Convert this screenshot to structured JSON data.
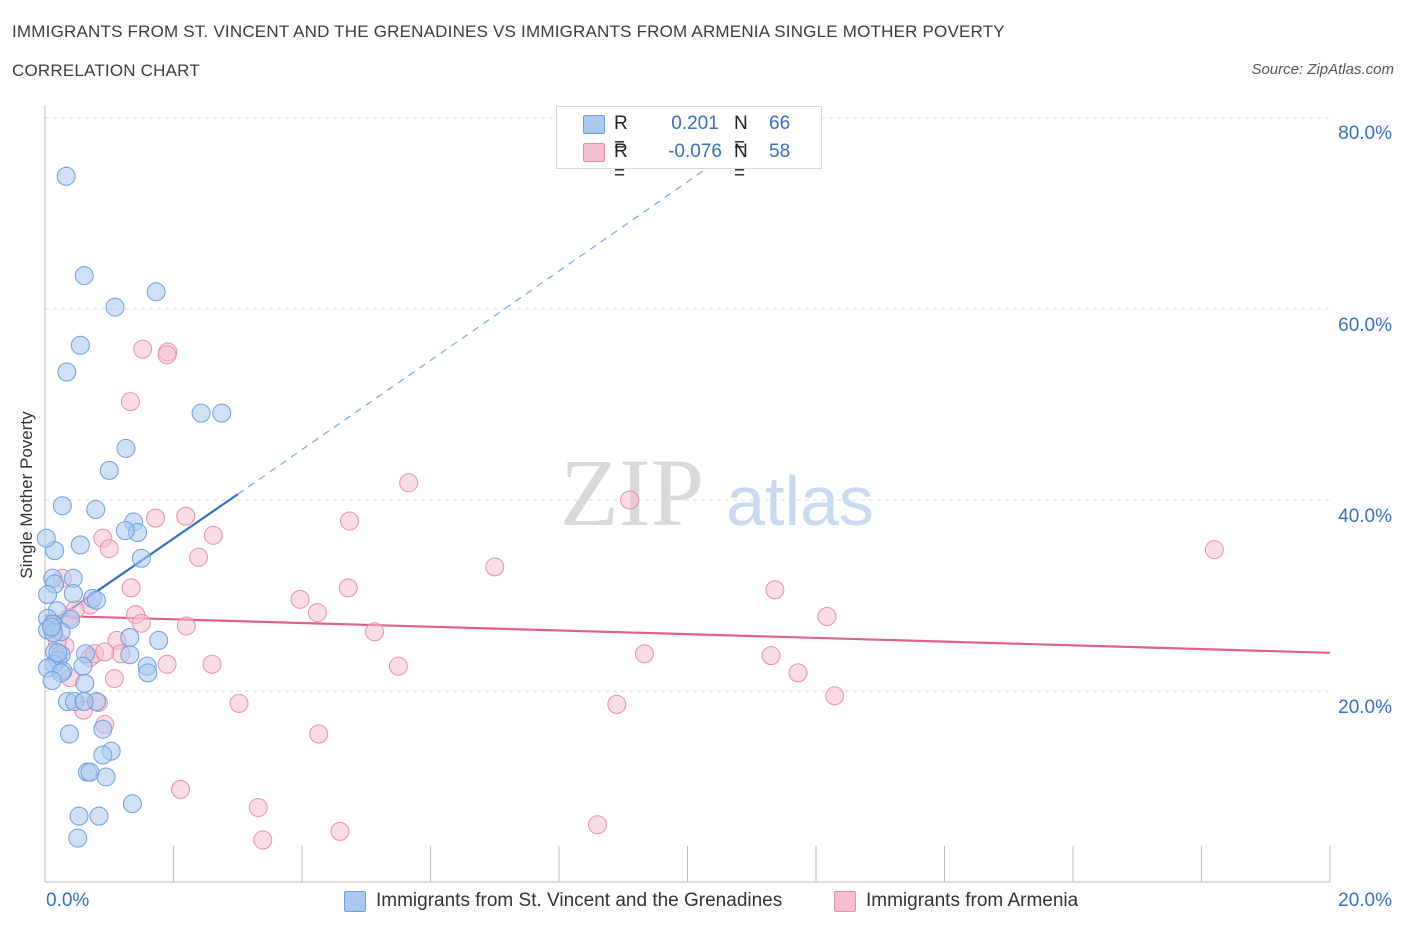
{
  "title_line1": "IMMIGRANTS FROM ST. VINCENT AND THE GRENADINES VS IMMIGRANTS FROM ARMENIA SINGLE MOTHER POVERTY",
  "title_line2": "CORRELATION CHART",
  "source": "Source: ZipAtlas.com",
  "watermark": {
    "zip": "ZIP",
    "atlas": "atlas"
  },
  "colors": {
    "blue_fill": "#aac8f0",
    "blue_stroke": "#6b9fdc",
    "blue_line": "#2f6fce",
    "pink_fill": "#f5bfd0",
    "pink_stroke": "#e98fac",
    "pink_line": "#e0608e",
    "tick_text": "#3a6fc4",
    "grid": "#dcdcdc"
  },
  "legend": {
    "r_label": "R =",
    "n_label": "N =",
    "rows": [
      {
        "r": "0.201",
        "n": "66"
      },
      {
        "r": "-0.076",
        "n": "58"
      }
    ]
  },
  "chart_data": {
    "type": "scatter",
    "xlabel": "",
    "ylabel": "Single Mother Poverty",
    "xlim": [
      0,
      20
    ],
    "ylim": [
      0,
      80
    ],
    "x_tick_labels": [
      "0.0%",
      "20.0%"
    ],
    "y_tick_labels": [
      "80.0%",
      "60.0%",
      "40.0%",
      "20.0%"
    ],
    "y_ticks": [
      80,
      60,
      40,
      20
    ],
    "grid": true,
    "legend_position": "top-center",
    "series": [
      {
        "name": "Immigrants from St. Vincent and the Grenadines",
        "r": 0.201,
        "n": 66,
        "points": [
          [
            0.33,
            73.9
          ],
          [
            0.61,
            63.5
          ],
          [
            1.09,
            60.2
          ],
          [
            1.73,
            61.8
          ],
          [
            0.55,
            56.2
          ],
          [
            0.34,
            53.4
          ],
          [
            2.43,
            49.1
          ],
          [
            2.75,
            49.1
          ],
          [
            1.26,
            45.4
          ],
          [
            1.0,
            43.1
          ],
          [
            0.27,
            39.4
          ],
          [
            0.79,
            39.0
          ],
          [
            1.38,
            37.7
          ],
          [
            1.44,
            36.6
          ],
          [
            1.25,
            36.8
          ],
          [
            0.55,
            35.3
          ],
          [
            0.15,
            34.7
          ],
          [
            0.02,
            36.0
          ],
          [
            1.5,
            33.9
          ],
          [
            0.12,
            31.8
          ],
          [
            0.44,
            31.8
          ],
          [
            0.15,
            31.2
          ],
          [
            0.44,
            30.2
          ],
          [
            0.04,
            30.1
          ],
          [
            0.74,
            29.7
          ],
          [
            0.8,
            29.5
          ],
          [
            0.19,
            28.4
          ],
          [
            0.04,
            27.6
          ],
          [
            0.4,
            27.5
          ],
          [
            0.12,
            27.0
          ],
          [
            0.04,
            26.4
          ],
          [
            0.25,
            26.2
          ],
          [
            0.13,
            26.1
          ],
          [
            1.32,
            25.6
          ],
          [
            1.77,
            25.3
          ],
          [
            0.15,
            24.1
          ],
          [
            0.25,
            23.8
          ],
          [
            0.63,
            23.9
          ],
          [
            1.32,
            23.8
          ],
          [
            0.2,
            23.2
          ],
          [
            0.14,
            22.8
          ],
          [
            0.59,
            22.6
          ],
          [
            1.59,
            22.6
          ],
          [
            0.04,
            22.4
          ],
          [
            0.28,
            22.1
          ],
          [
            0.25,
            21.9
          ],
          [
            1.6,
            21.9
          ],
          [
            0.11,
            21.1
          ],
          [
            0.62,
            20.8
          ],
          [
            0.35,
            18.9
          ],
          [
            0.46,
            18.9
          ],
          [
            0.8,
            18.9
          ],
          [
            0.61,
            18.9
          ],
          [
            0.38,
            15.5
          ],
          [
            0.9,
            16.0
          ],
          [
            1.03,
            13.7
          ],
          [
            0.9,
            13.3
          ],
          [
            0.66,
            11.5
          ],
          [
            0.7,
            11.5
          ],
          [
            0.95,
            11.0
          ],
          [
            1.36,
            8.2
          ],
          [
            0.53,
            6.9
          ],
          [
            0.84,
            6.9
          ],
          [
            0.51,
            4.6
          ],
          [
            0.1,
            26.7
          ],
          [
            0.2,
            24.0
          ]
        ]
      },
      {
        "name": "Immigrants from Armenia",
        "r": -0.076,
        "n": 58,
        "points": [
          [
            1.52,
            55.8
          ],
          [
            1.91,
            55.5
          ],
          [
            1.9,
            55.2
          ],
          [
            1.33,
            50.3
          ],
          [
            5.66,
            41.8
          ],
          [
            9.1,
            40.0
          ],
          [
            2.19,
            38.3
          ],
          [
            1.72,
            38.1
          ],
          [
            4.74,
            37.8
          ],
          [
            2.62,
            36.3
          ],
          [
            0.9,
            36.0
          ],
          [
            1.0,
            34.9
          ],
          [
            2.39,
            34.0
          ],
          [
            7.0,
            33.0
          ],
          [
            18.2,
            34.8
          ],
          [
            0.27,
            31.8
          ],
          [
            1.34,
            30.8
          ],
          [
            4.72,
            30.8
          ],
          [
            11.36,
            30.6
          ],
          [
            3.97,
            29.6
          ],
          [
            0.7,
            29.0
          ],
          [
            4.24,
            28.2
          ],
          [
            0.38,
            27.7
          ],
          [
            1.41,
            28.0
          ],
          [
            12.17,
            27.8
          ],
          [
            0.47,
            28.5
          ],
          [
            1.5,
            27.1
          ],
          [
            2.2,
            26.8
          ],
          [
            5.13,
            26.2
          ],
          [
            0.12,
            26.6
          ],
          [
            1.12,
            25.3
          ],
          [
            0.7,
            23.5
          ],
          [
            0.77,
            23.9
          ],
          [
            1.18,
            23.9
          ],
          [
            9.33,
            23.9
          ],
          [
            11.3,
            23.7
          ],
          [
            1.9,
            22.8
          ],
          [
            2.6,
            22.8
          ],
          [
            5.5,
            22.6
          ],
          [
            11.72,
            21.9
          ],
          [
            0.39,
            21.4
          ],
          [
            1.08,
            21.3
          ],
          [
            12.29,
            19.5
          ],
          [
            0.6,
            18.9
          ],
          [
            3.02,
            18.7
          ],
          [
            8.9,
            18.6
          ],
          [
            0.83,
            18.8
          ],
          [
            0.6,
            18.0
          ],
          [
            0.93,
            16.5
          ],
          [
            4.26,
            15.5
          ],
          [
            2.11,
            9.7
          ],
          [
            3.32,
            7.8
          ],
          [
            8.6,
            6.0
          ],
          [
            4.59,
            5.3
          ],
          [
            3.39,
            4.4
          ],
          [
            0.31,
            24.7
          ],
          [
            0.19,
            25.2
          ],
          [
            0.93,
            24.1
          ]
        ]
      }
    ],
    "trend_lines": [
      {
        "series": "Immigrants from St. Vincent and the Grenadines",
        "from": [
          0,
          26.7
        ],
        "to": [
          3.0,
          40.6
        ],
        "extended_to": [
          11.0,
          78.0
        ]
      },
      {
        "series": "Immigrants from Armenia",
        "from": [
          0,
          27.9
        ],
        "to": [
          20.0,
          24.0
        ]
      }
    ]
  }
}
